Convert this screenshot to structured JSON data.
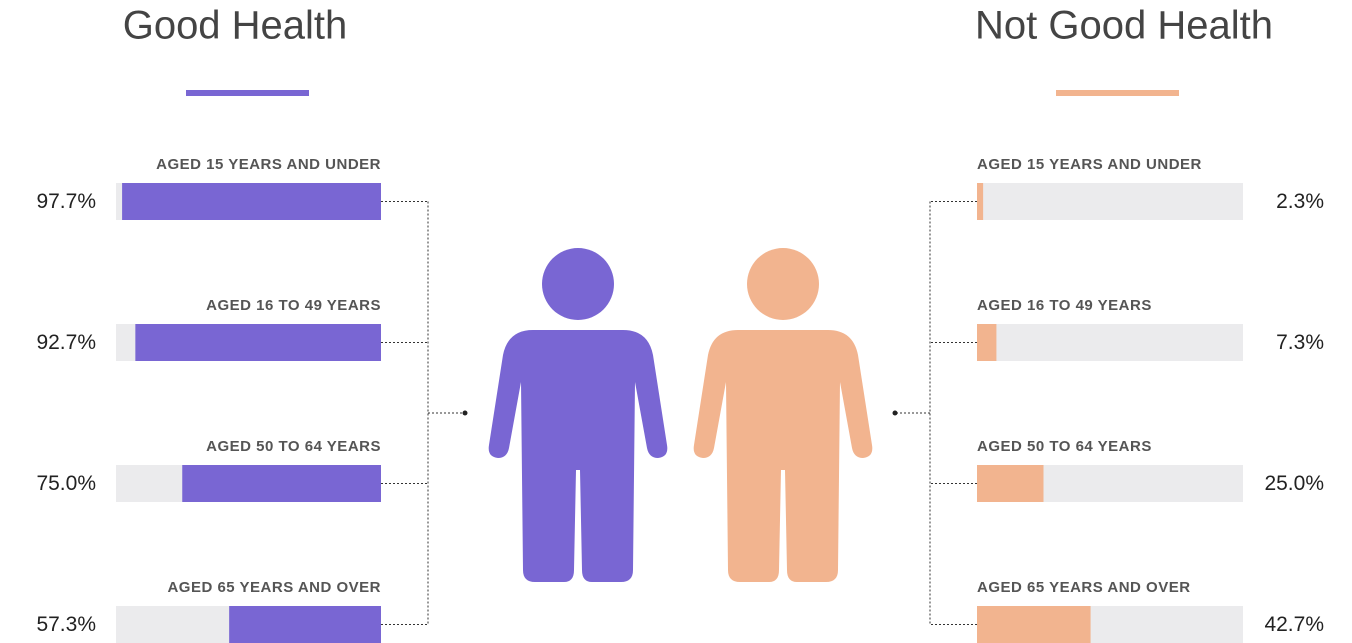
{
  "chart_data": [
    {
      "type": "bar",
      "title": "Good Health",
      "color": "#7966d3",
      "categories": [
        "AGED 15 YEARS AND UNDER",
        "AGED 16 TO 49 YEARS",
        "AGED 50 TO 64 YEARS",
        "AGED 65 YEARS AND OVER"
      ],
      "values": [
        97.7,
        92.7,
        75.0,
        57.3
      ],
      "value_labels": [
        "97.7%",
        "92.7%",
        "75.0%",
        "57.3%"
      ],
      "xlim": [
        0,
        100
      ],
      "xreverse": true
    },
    {
      "type": "bar",
      "title": "Not Good Health",
      "color": "#f2b48f",
      "categories": [
        "AGED 15 YEARS AND UNDER",
        "AGED 16 TO 49 YEARS",
        "AGED 50 TO 64 YEARS",
        "AGED 65 YEARS AND OVER"
      ],
      "values": [
        2.3,
        7.3,
        25.0,
        42.7
      ],
      "value_labels": [
        "2.3%",
        "7.3%",
        "25.0%",
        "42.7%"
      ],
      "xlim": [
        0,
        100
      ],
      "xreverse": false
    }
  ]
}
